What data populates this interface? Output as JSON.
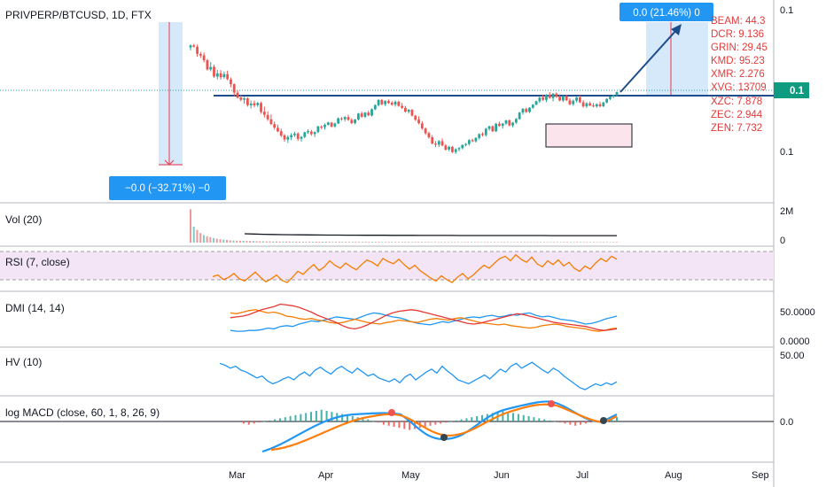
{
  "symbol": "PRIVPERP/BTCUSD, 1D, FTX",
  "price_scale": {
    "top": "0.1",
    "mid": "0.1",
    "low": "0.1",
    "current_badge": "0.1"
  },
  "measure_up": "0.0 (21.46%) 0",
  "measure_down": "−0.0 (−32.71%) −0",
  "symbol_list": [
    "BEAM: 44.3",
    "DCR: 9.136",
    "GRIN: 29.45",
    "KMD: 95.23",
    "XMR: 2.276",
    "XVG: 13709",
    "XZC: 7.878",
    "ZEC: 2.944",
    "ZEN: 7.732"
  ],
  "panes": {
    "vol": {
      "label": "Vol (20)",
      "ticks": [
        "2M",
        "0"
      ]
    },
    "rsi": {
      "label": "RSI (7, close)"
    },
    "dmi": {
      "label": "DMI (14, 14)",
      "ticks": [
        "50.0000",
        "0.0000"
      ]
    },
    "hv": {
      "label": "HV (10)",
      "ticks": [
        "50.00"
      ]
    },
    "macd": {
      "label": "log MACD (close, 60, 1, 8, 26, 9)",
      "ticks": [
        "0.0"
      ]
    }
  },
  "x_ticks": [
    "Mar",
    "Apr",
    "May",
    "Jun",
    "Jul",
    "Aug",
    "Sep"
  ],
  "colors": {
    "up": "#26a69a",
    "down": "#ef5350",
    "accent": "#2196f3",
    "badge": "#0f9b7f",
    "neckline": "#1e4d8c",
    "rsi_line": "#f57c00",
    "rsi_band": "#efe0f7",
    "macd_line": "#2196f3",
    "signal_line": "#ff7f0e"
  },
  "chart_data": {
    "type": "candlestick",
    "title": "PRIVPERP/BTCUSD, 1D, FTX",
    "x_range": [
      "Feb",
      "Sep"
    ],
    "candles": [
      [
        94.6,
        96.8,
        92.6,
        96.1
      ],
      [
        96.1,
        97.1,
        94.6,
        95.1
      ],
      [
        95.1,
        96.6,
        88.2,
        90.1
      ],
      [
        90.0,
        91.5,
        87.3,
        88.9
      ],
      [
        89.1,
        91.0,
        84.1,
        85.6
      ],
      [
        85.6,
        86.6,
        78.3,
        79.1
      ],
      [
        79.1,
        84.4,
        77.8,
        80.8
      ],
      [
        81.0,
        82.5,
        73.2,
        74.1
      ],
      [
        74.1,
        78.8,
        72.1,
        76.3
      ],
      [
        76.5,
        78.7,
        71.9,
        73.6
      ],
      [
        73.7,
        77.6,
        72.6,
        75.8
      ],
      [
        75.8,
        78.3,
        71.4,
        72.3
      ],
      [
        72.1,
        73.5,
        66.5,
        68.7
      ],
      [
        68.7,
        69.2,
        60.3,
        62.8
      ],
      [
        62.7,
        64.3,
        58.6,
        59.2
      ],
      [
        59.3,
        61.2,
        56.5,
        57.7
      ],
      [
        57.7,
        59.8,
        54.9,
        58.7
      ],
      [
        58.7,
        59.5,
        52.8,
        53.9
      ],
      [
        53.8,
        57.1,
        51.6,
        55.0
      ],
      [
        55.3,
        57.1,
        52.3,
        53.7
      ],
      [
        53.9,
        56.1,
        52.7,
        55.5
      ],
      [
        55.4,
        56.4,
        47.8,
        49.1
      ],
      [
        49.3,
        52.9,
        45.2,
        47.1
      ],
      [
        47.0,
        49.6,
        42.8,
        44.0
      ],
      [
        43.9,
        47.3,
        39.7,
        40.6
      ],
      [
        40.5,
        42.4,
        36.5,
        38.0
      ],
      [
        37.9,
        40.1,
        34.8,
        35.4
      ],
      [
        35.5,
        37.3,
        31.3,
        32.4
      ],
      [
        32.6,
        33.6,
        28.1,
        29.7
      ],
      [
        29.6,
        32.7,
        27.2,
        31.4
      ],
      [
        31.2,
        34.1,
        29.2,
        32.7
      ],
      [
        32.7,
        35.1,
        31.5,
        33.8
      ],
      [
        33.9,
        34.8,
        28.7,
        30.1
      ],
      [
        30.2,
        32.2,
        28.2,
        31.5
      ],
      [
        31.5,
        35.1,
        30.5,
        34.8
      ],
      [
        34.7,
        36.9,
        33.6,
        35.6
      ],
      [
        35.3,
        36.5,
        32.3,
        33.5
      ],
      [
        33.5,
        35.4,
        31.4,
        34.9
      ],
      [
        34.9,
        39.3,
        34.1,
        38.9
      ],
      [
        38.7,
        39.6,
        36.9,
        38.3
      ],
      [
        38.4,
        41.0,
        36.7,
        40.0
      ],
      [
        40.0,
        42.2,
        39.6,
        41.7
      ],
      [
        41.5,
        42.1,
        38.1,
        38.8
      ],
      [
        38.9,
        41.6,
        37.9,
        41.0
      ],
      [
        41.0,
        45.3,
        40.6,
        44.6
      ],
      [
        44.6,
        45.5,
        42.9,
        44.0
      ],
      [
        43.9,
        46.2,
        42.4,
        45.5
      ],
      [
        45.5,
        47.2,
        42.8,
        43.5
      ],
      [
        43.5,
        44.6,
        40.6,
        41.2
      ],
      [
        41.2,
        44.1,
        40.4,
        43.8
      ],
      [
        43.8,
        48.4,
        43.1,
        48.0
      ],
      [
        48.0,
        49.3,
        45.1,
        45.7
      ],
      [
        45.7,
        49.1,
        44.8,
        48.6
      ],
      [
        48.6,
        49.9,
        46.1,
        46.8
      ],
      [
        46.6,
        51.7,
        45.8,
        51.0
      ],
      [
        51.0,
        54.6,
        50.3,
        53.9
      ],
      [
        53.9,
        58.2,
        53.0,
        57.5
      ],
      [
        57.5,
        58.3,
        53.8,
        54.5
      ],
      [
        54.5,
        57.4,
        53.2,
        56.8
      ],
      [
        56.8,
        57.9,
        54.8,
        55.4
      ],
      [
        55.6,
        56.8,
        53.5,
        54.2
      ],
      [
        54.3,
        57.2,
        52.9,
        56.3
      ],
      [
        56.3,
        57.2,
        52.7,
        53.4
      ],
      [
        53.4,
        55.5,
        51.2,
        52.0
      ],
      [
        52.0,
        53.4,
        48.6,
        49.3
      ],
      [
        49.3,
        51.2,
        48.0,
        50.6
      ],
      [
        50.7,
        51.1,
        45.9,
        46.5
      ],
      [
        46.5,
        47.0,
        42.7,
        43.6
      ],
      [
        43.8,
        46.1,
        40.3,
        41.2
      ],
      [
        41.0,
        42.6,
        36.4,
        37.5
      ],
      [
        37.4,
        38.2,
        32.9,
        34.1
      ],
      [
        34.2,
        35.2,
        30.2,
        31.2
      ],
      [
        31.2,
        32.8,
        26.2,
        26.8
      ],
      [
        26.8,
        28.6,
        24.3,
        26.0
      ],
      [
        26.0,
        29.2,
        24.3,
        28.5
      ],
      [
        28.5,
        30.4,
        24.9,
        25.4
      ],
      [
        25.4,
        26.4,
        21.8,
        22.5
      ],
      [
        22.6,
        25.2,
        21.4,
        24.5
      ],
      [
        24.4,
        25.1,
        20.1,
        20.8
      ],
      [
        20.8,
        23.5,
        19.5,
        22.8
      ],
      [
        22.8,
        24.4,
        21.4,
        23.6
      ],
      [
        23.6,
        26.2,
        22.7,
        25.8
      ],
      [
        25.8,
        27.2,
        24.8,
        26.5
      ],
      [
        26.5,
        29.9,
        25.3,
        29.2
      ],
      [
        29.2,
        30.2,
        27.8,
        28.4
      ],
      [
        28.4,
        31.2,
        27.5,
        30.8
      ],
      [
        30.7,
        34.0,
        29.6,
        33.5
      ],
      [
        33.6,
        34.8,
        31.8,
        32.8
      ],
      [
        32.8,
        37.9,
        31.7,
        37.3
      ],
      [
        37.2,
        39.4,
        35.9,
        39.0
      ],
      [
        39.0,
        39.7,
        35.0,
        35.5
      ],
      [
        35.5,
        41.3,
        34.9,
        40.8
      ],
      [
        40.8,
        42.3,
        38.7,
        39.3
      ],
      [
        39.3,
        41.4,
        37.4,
        40.9
      ],
      [
        40.9,
        43.6,
        40.1,
        43.1
      ],
      [
        43.2,
        43.8,
        38.9,
        39.6
      ],
      [
        39.6,
        42.0,
        38.2,
        41.6
      ],
      [
        41.6,
        44.8,
        40.7,
        44.2
      ],
      [
        44.1,
        49.1,
        43.5,
        48.7
      ],
      [
        48.7,
        51.8,
        47.2,
        51.3
      ],
      [
        51.2,
        52.2,
        48.4,
        49.1
      ],
      [
        49.1,
        52.5,
        48.3,
        52.1
      ],
      [
        52.1,
        54.7,
        51.3,
        54.2
      ],
      [
        54.2,
        57.1,
        53.9,
        56.7
      ],
      [
        56.6,
        59.8,
        55.5,
        59.3
      ],
      [
        59.4,
        61.3,
        56.9,
        57.7
      ],
      [
        57.6,
        61.7,
        56.0,
        61.3
      ],
      [
        61.3,
        63.1,
        58.5,
        59.0
      ],
      [
        58.9,
        62.4,
        56.6,
        62.0
      ],
      [
        62.0,
        62.9,
        59.0,
        59.8
      ],
      [
        59.8,
        61.5,
        56.6,
        57.2
      ],
      [
        57.2,
        60.7,
        56.1,
        60.3
      ],
      [
        60.3,
        61.1,
        56.8,
        57.3
      ],
      [
        57.3,
        58.7,
        53.8,
        54.5
      ],
      [
        54.6,
        57.8,
        53.4,
        57.0
      ],
      [
        57.0,
        59.8,
        55.8,
        59.4
      ],
      [
        59.4,
        60.7,
        55.4,
        55.9
      ],
      [
        55.9,
        57.5,
        52.2,
        53.0
      ],
      [
        53.1,
        56.0,
        51.9,
        55.2
      ],
      [
        55.2,
        56.5,
        53.1,
        53.7
      ],
      [
        53.7,
        55.4,
        52.4,
        53.0
      ],
      [
        53.0,
        55.2,
        52.1,
        54.6
      ],
      [
        54.5,
        56.3,
        52.4,
        53.1
      ],
      [
        53.1,
        56.3,
        52.5,
        55.8
      ],
      [
        55.8,
        58.8,
        55.2,
        58.3
      ],
      [
        58.3,
        60.3,
        57.5,
        59.9
      ],
      [
        59.9,
        61.3,
        58.9,
        60.9
      ],
      [
        60.9,
        63.6,
        60.2,
        63.1
      ]
    ],
    "neckline": 62.0,
    "rsi": [
      34,
      36,
      30,
      33,
      38,
      31,
      28,
      34,
      40,
      33,
      27,
      31,
      36,
      29,
      26,
      33,
      41,
      37,
      44,
      50,
      42,
      47,
      55,
      49,
      45,
      52,
      47,
      43,
      50,
      56,
      53,
      48,
      58,
      54,
      51,
      57,
      50,
      44,
      49,
      42,
      37,
      32,
      28,
      35,
      30,
      26,
      33,
      38,
      31,
      36,
      43,
      49,
      45,
      52,
      58,
      61,
      55,
      63,
      57,
      53,
      60,
      51,
      47,
      55,
      50,
      56,
      48,
      53,
      45,
      41,
      48,
      44,
      52,
      58,
      54,
      61,
      57
    ],
    "vol_ma": [
      100,
      97,
      94,
      92,
      90,
      89,
      88,
      87,
      86,
      85,
      85,
      84,
      84,
      83,
      83,
      83,
      82,
      82,
      82,
      81,
      81,
      81,
      81,
      80,
      80,
      80,
      80,
      80,
      80,
      80,
      80,
      80,
      80,
      79,
      79,
      79,
      79,
      79,
      79,
      79,
      79
    ],
    "vol_bars": [
      1880,
      900,
      720,
      540,
      430,
      360,
      310,
      260,
      220,
      190,
      170,
      150,
      130,
      120,
      110,
      110,
      100,
      95,
      90,
      85,
      80,
      80,
      75,
      70,
      70,
      65,
      65,
      60,
      60,
      60,
      60,
      55,
      55,
      55,
      55,
      50,
      50,
      50,
      50,
      50,
      50,
      50,
      45,
      45,
      45,
      45,
      45,
      45,
      40,
      40,
      40,
      40,
      40,
      40,
      40,
      40,
      40,
      40,
      35,
      35,
      35,
      35,
      35,
      35,
      35,
      35,
      35,
      35,
      35,
      35,
      35,
      35,
      35,
      30,
      30,
      30,
      30,
      30,
      30,
      30,
      30,
      30,
      30,
      30,
      30,
      30,
      30,
      30,
      30,
      30,
      30,
      30,
      30,
      30,
      30,
      30,
      30,
      30,
      30,
      30,
      30,
      30,
      30,
      30,
      30,
      30,
      30,
      30,
      30,
      30,
      30,
      30,
      30,
      30,
      30,
      30,
      30,
      30,
      30,
      30,
      30,
      30,
      30,
      30,
      30,
      30,
      30,
      30,
      30,
      30
    ],
    "hv": [
      47,
      45,
      42,
      44,
      40,
      38,
      35,
      32,
      34,
      29,
      26,
      28,
      31,
      33,
      30,
      35,
      38,
      34,
      40,
      43,
      39,
      36,
      41,
      44,
      40,
      37,
      42,
      38,
      34,
      36,
      32,
      30,
      28,
      31,
      27,
      33,
      36,
      30,
      34,
      38,
      41,
      37,
      44,
      39,
      35,
      30,
      28,
      26,
      29,
      32,
      35,
      31,
      36,
      41,
      38,
      44,
      47,
      42,
      45,
      48,
      44,
      40,
      37,
      42,
      39,
      34,
      30,
      26,
      22,
      20,
      23,
      26,
      24,
      27,
      25,
      28
    ],
    "dmi_plus": [
      12,
      11,
      11,
      12,
      12,
      13,
      15,
      14,
      17,
      18,
      17,
      20,
      22,
      24,
      23,
      25,
      27,
      29,
      28,
      27,
      26,
      29,
      32,
      34,
      33,
      31,
      29,
      28,
      26,
      23,
      21,
      20,
      19,
      21,
      23,
      22,
      24,
      26,
      28,
      29,
      28,
      30,
      31,
      29,
      30,
      32,
      31,
      33,
      34,
      31,
      29,
      30,
      28,
      26,
      25,
      24,
      22,
      20,
      21,
      23,
      26,
      28,
      30
    ],
    "dmi_minus": [
      34,
      33,
      35,
      37,
      38,
      36,
      34,
      35,
      33,
      30,
      29,
      27,
      26,
      27,
      25,
      24,
      22,
      21,
      22,
      24,
      26,
      24,
      22,
      21,
      20,
      22,
      23,
      25,
      24,
      23,
      22,
      24,
      26,
      27,
      26,
      25,
      27,
      28,
      26,
      24,
      22,
      21,
      20,
      19,
      20,
      18,
      17,
      16,
      15,
      16,
      18,
      19,
      20,
      19,
      17,
      16,
      15,
      14,
      12,
      11,
      12,
      14,
      15
    ],
    "adx": [
      28,
      29,
      30,
      32,
      35,
      38,
      40,
      42,
      45,
      44,
      43,
      41,
      38,
      35,
      31,
      28,
      25,
      22,
      18,
      15,
      14,
      16,
      19,
      23,
      27,
      31,
      34,
      36,
      37,
      38,
      37,
      35,
      33,
      31,
      29,
      27,
      25,
      23,
      21,
      20,
      21,
      23,
      25,
      27,
      29,
      31,
      33,
      32,
      30,
      28,
      26,
      24,
      22,
      21,
      20,
      19,
      18,
      17,
      15,
      13,
      12,
      13,
      14
    ],
    "macd_hist": [
      -2,
      -3,
      -2,
      -1,
      0,
      1,
      2,
      3,
      4,
      5,
      6,
      7,
      8,
      9,
      10,
      11,
      10,
      9,
      8,
      7,
      6,
      5,
      4,
      3,
      2,
      0,
      -1,
      -3,
      -4,
      -5,
      -6,
      -7,
      -8,
      -7,
      -6,
      -5,
      -4,
      -3,
      -2,
      -1,
      0,
      1,
      2,
      3,
      4,
      5,
      6,
      7,
      8,
      9,
      10,
      9,
      8,
      7,
      6,
      5,
      4,
      3,
      2,
      1,
      0,
      -1,
      -2,
      -3,
      -4,
      -3,
      -2,
      -1,
      0,
      1,
      2,
      3,
      4
    ]
  }
}
